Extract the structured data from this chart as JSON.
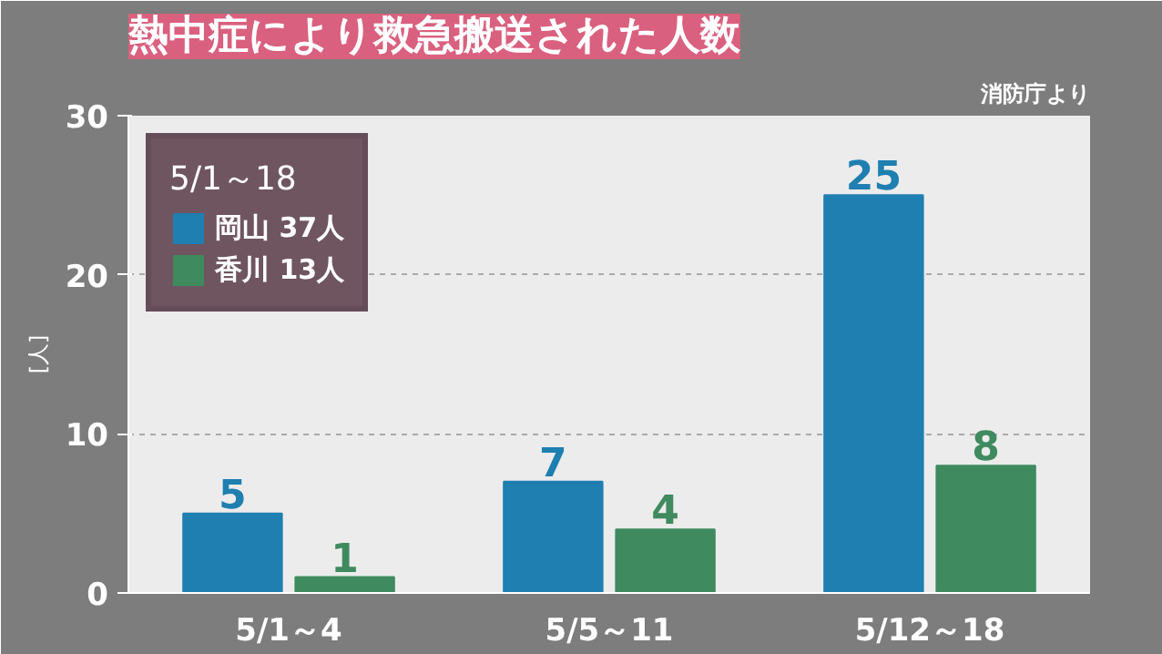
{
  "chart_data": {
    "type": "bar",
    "title": "熱中症により救急搬送された人数",
    "annotations": [
      "消防庁より"
    ],
    "ylabel": "[人]",
    "legend_title": "5/1～18",
    "categories": [
      "5/1～4",
      "5/5～11",
      "5/12～18"
    ],
    "series": [
      {
        "name": "岡山 37人",
        "color": "#1f7fb0",
        "values": [
          5,
          7,
          25
        ]
      },
      {
        "name": "香川 13人",
        "color": "#3f8a5f",
        "values": [
          1,
          4,
          8
        ]
      }
    ],
    "ylim": [
      0,
      30
    ],
    "yticks": [
      0,
      10,
      20,
      30
    ],
    "grid": "y",
    "legend": "top left",
    "data_labels": true
  }
}
